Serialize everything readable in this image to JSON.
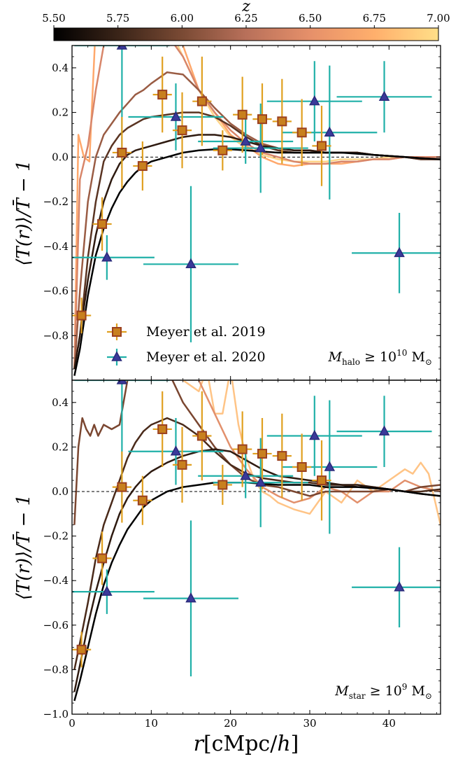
{
  "chart_data": {
    "colorbar": {
      "label": "z",
      "ticks": [
        "5.50",
        "5.75",
        "6.00",
        "6.25",
        "6.50",
        "6.75",
        "7.00"
      ],
      "range": [
        5.5,
        7.0
      ],
      "colors": [
        "#000000",
        "#3a2418",
        "#7a4a34",
        "#b8705a",
        "#e6906a",
        "#ffaf6c",
        "#ffdf88"
      ]
    },
    "xlabel": "r[cMpc/h]",
    "xlim": [
      0,
      46.5
    ],
    "xticks": [
      "0",
      "10",
      "20",
      "30",
      "40"
    ],
    "panels": [
      {
        "ylabel": "⟨T(r)⟩/T̄ − 1",
        "ylim": [
          -1.0,
          0.5
        ],
        "yticks": [
          "−1.0",
          "−0.8",
          "−0.6",
          "−0.4",
          "−0.2",
          "0.0",
          "0.2",
          "0.4"
        ],
        "annotation": {
          "var": "M",
          "sub": "halo",
          "rel": "≥ 10",
          "exp": "10",
          "unit": "M",
          "unit_sub": "⊙"
        },
        "show_legend": true,
        "series": [
          {
            "z": 5.55,
            "color": "#000000",
            "x": [
              0.3,
              1,
              2,
              3,
              4,
              5,
              6,
              7,
              8,
              9,
              10,
              12,
              14,
              16,
              18,
              20,
              22,
              24,
              26,
              28,
              30,
              32,
              34,
              36,
              38,
              40,
              42,
              44,
              46.5
            ],
            "y": [
              -0.98,
              -0.86,
              -0.62,
              -0.44,
              -0.32,
              -0.23,
              -0.16,
              -0.11,
              -0.07,
              -0.04,
              -0.02,
              0.0,
              0.02,
              0.03,
              0.035,
              0.035,
              0.03,
              0.025,
              0.02,
              0.02,
              0.02,
              0.02,
              0.02,
              0.015,
              0.01,
              0.005,
              0.0,
              -0.005,
              -0.01
            ]
          },
          {
            "z": 5.9,
            "color": "#2e1a10",
            "x": [
              0.3,
              1,
              2,
              3,
              4,
              5,
              6,
              7,
              8,
              9,
              10,
              12,
              14,
              16,
              18,
              20,
              22,
              24,
              26,
              28,
              30,
              32,
              34,
              36,
              38,
              40,
              42,
              44,
              46.5
            ],
            "y": [
              -0.95,
              -0.8,
              -0.55,
              -0.35,
              -0.2,
              -0.1,
              -0.03,
              0.01,
              0.03,
              0.04,
              0.05,
              0.07,
              0.09,
              0.1,
              0.1,
              0.09,
              0.07,
              0.05,
              0.04,
              0.03,
              0.03,
              0.02,
              0.02,
              0.02,
              0.01,
              0.005,
              0.0,
              -0.005,
              -0.01
            ]
          },
          {
            "z": 6.1,
            "color": "#5a3422",
            "x": [
              0.3,
              1,
              2,
              3,
              4,
              5,
              6,
              7,
              8,
              9,
              10,
              12,
              14,
              16,
              18,
              20,
              22,
              24,
              26,
              28,
              30,
              32,
              34,
              36,
              38,
              40,
              42,
              44,
              46.5
            ],
            "y": [
              -0.95,
              -0.8,
              -0.45,
              -0.2,
              -0.02,
              0.05,
              0.1,
              0.13,
              0.15,
              0.17,
              0.18,
              0.19,
              0.2,
              0.2,
              0.18,
              0.14,
              0.09,
              0.05,
              0.03,
              0.02,
              0.02,
              0.02,
              0.02,
              0.02,
              0.01,
              0.005,
              0.0,
              -0.01,
              -0.01
            ]
          },
          {
            "z": 6.35,
            "color": "#9a5c44",
            "x": [
              0.3,
              1,
              2,
              3,
              4,
              5,
              6,
              7,
              8,
              9,
              10,
              12,
              14,
              16,
              18,
              20,
              22,
              24,
              26,
              28,
              30,
              32,
              34,
              36,
              38,
              40,
              42,
              44,
              46.5
            ],
            "y": [
              -0.95,
              -0.6,
              -0.2,
              0.0,
              0.1,
              0.15,
              0.2,
              0.24,
              0.28,
              0.3,
              0.33,
              0.38,
              0.37,
              0.3,
              0.22,
              0.15,
              0.1,
              0.06,
              0.04,
              0.03,
              0.03,
              0.02,
              0.02,
              0.02,
              0.01,
              0.005,
              0.0,
              -0.01,
              -0.01
            ]
          },
          {
            "z": 6.6,
            "color": "#d8866a",
            "x": [
              0.3,
              1,
              2,
              3,
              4,
              5,
              6,
              7,
              8,
              9,
              10,
              12,
              14,
              16,
              18,
              20,
              22,
              24,
              26,
              28,
              30,
              32,
              34,
              36,
              38,
              40,
              42,
              44,
              46.5
            ],
            "y": [
              -0.95,
              -0.1,
              0.05,
              0.3,
              0.5,
              0.6,
              0.6,
              0.6,
              0.6,
              0.55,
              0.52,
              0.55,
              0.45,
              0.3,
              0.2,
              0.12,
              0.06,
              0.02,
              0.0,
              -0.02,
              -0.03,
              -0.03,
              -0.02,
              -0.02,
              -0.01,
              -0.01,
              0.0,
              0.0,
              0.0
            ]
          },
          {
            "z": 6.85,
            "color": "#ffa86c",
            "x": [
              0.3,
              0.8,
              1.5,
              2.2,
              3,
              4,
              5,
              6,
              7,
              8,
              9,
              10,
              12,
              14,
              16,
              18,
              20,
              22,
              24,
              26,
              28,
              30,
              32,
              34,
              36,
              38,
              40,
              42,
              44,
              46.5
            ],
            "y": [
              -0.95,
              0.1,
              0.0,
              -0.02,
              0.6,
              0.6,
              0.6,
              0.6,
              0.6,
              0.6,
              0.6,
              0.6,
              0.6,
              0.5,
              0.3,
              0.2,
              0.1,
              0.05,
              0.0,
              -0.03,
              -0.04,
              -0.03,
              -0.03,
              -0.03,
              -0.02,
              -0.01,
              -0.01,
              0.0,
              0.0,
              0.0
            ]
          },
          {
            "z": 6.95,
            "color": "#ffd58a",
            "x": [
              0.3,
              0.8,
              1.2,
              1.8,
              2.5,
              3,
              4,
              5,
              6,
              7,
              8,
              10,
              12,
              14,
              16,
              18,
              20,
              22,
              24,
              26,
              28,
              30,
              32,
              34,
              36,
              38,
              40,
              42,
              44,
              46.5
            ],
            "y": [
              0.6,
              0.6,
              0.6,
              0.6,
              0.6,
              0.6,
              0.6,
              0.6,
              0.6,
              0.6,
              0.6,
              0.6,
              0.6,
              0.45,
              0.3,
              0.18,
              0.09,
              0.04,
              0.01,
              -0.01,
              -0.02,
              -0.02,
              -0.02,
              -0.01,
              -0.01,
              -0.01,
              0.0,
              0.0,
              0.0,
              0.0
            ]
          }
        ]
      },
      {
        "ylabel": "⟨T(r)⟩/T̄ − 1",
        "ylim": [
          -1.0,
          0.5
        ],
        "yticks": [
          "−1.0",
          "−0.8",
          "−0.6",
          "−0.4",
          "−0.2",
          "0.0",
          "0.2",
          "0.4"
        ],
        "annotation": {
          "var": "M",
          "sub": "star",
          "rel": "≥ 10",
          "exp": "9",
          "unit": "M",
          "unit_sub": "⊙"
        },
        "show_legend": false,
        "series": [
          {
            "z": 5.55,
            "color": "#000000",
            "x": [
              0.3,
              1,
              2,
              3,
              4,
              5,
              6,
              7,
              8,
              9,
              10,
              12,
              14,
              16,
              18,
              20,
              22,
              24,
              26,
              28,
              30,
              32,
              34,
              36,
              38,
              40,
              42,
              44,
              46.5
            ],
            "y": [
              -0.94,
              -0.85,
              -0.7,
              -0.55,
              -0.42,
              -0.32,
              -0.24,
              -0.17,
              -0.12,
              -0.07,
              -0.04,
              0.0,
              0.02,
              0.03,
              0.04,
              0.04,
              0.04,
              0.035,
              0.03,
              0.03,
              0.03,
              0.02,
              0.02,
              0.02,
              0.015,
              0.01,
              0.0,
              -0.01,
              -0.02
            ]
          },
          {
            "z": 5.9,
            "color": "#2e1a10",
            "x": [
              0.3,
              1,
              2,
              3,
              4,
              5,
              6,
              7,
              8,
              9,
              10,
              12,
              14,
              16,
              18,
              20,
              22,
              24,
              26,
              28,
              30,
              32,
              34,
              36,
              38,
              40,
              42,
              44,
              46.5
            ],
            "y": [
              -0.9,
              -0.78,
              -0.6,
              -0.45,
              -0.32,
              -0.2,
              -0.1,
              -0.03,
              0.02,
              0.06,
              0.09,
              0.13,
              0.16,
              0.18,
              0.19,
              0.18,
              0.14,
              0.1,
              0.07,
              0.06,
              0.05,
              0.04,
              0.03,
              0.03,
              0.02,
              0.01,
              0.0,
              -0.01,
              -0.02
            ]
          },
          {
            "z": 6.05,
            "color": "#4a2a1a",
            "x": [
              0.3,
              1,
              2,
              3,
              4,
              5,
              6,
              7,
              8,
              9,
              10,
              12,
              14,
              16,
              18,
              20,
              22,
              24,
              26,
              28,
              30,
              32,
              34,
              36,
              38,
              40,
              42,
              44,
              46.5
            ],
            "y": [
              -0.8,
              -0.68,
              -0.5,
              -0.3,
              -0.15,
              -0.05,
              0.05,
              0.15,
              0.22,
              0.27,
              0.3,
              0.33,
              0.3,
              0.25,
              0.18,
              0.12,
              0.08,
              0.06,
              0.05,
              0.04,
              0.04,
              0.03,
              0.03,
              0.02,
              0.02,
              0.01,
              0.0,
              0.0,
              0.01
            ]
          },
          {
            "z": 6.25,
            "color": "#7a4630",
            "x": [
              0.3,
              0.8,
              1.3,
              1.8,
              2.3,
              2.8,
              3.3,
              4,
              5,
              6,
              7,
              8,
              10,
              12,
              14,
              16,
              18,
              20,
              22,
              24,
              26,
              28,
              30,
              32,
              34,
              36,
              38,
              40,
              42,
              44,
              46.5
            ],
            "y": [
              -0.15,
              0.2,
              0.33,
              0.28,
              0.25,
              0.3,
              0.25,
              0.3,
              0.28,
              0.3,
              0.5,
              0.6,
              0.6,
              0.55,
              0.4,
              0.3,
              0.2,
              0.12,
              0.06,
              0.03,
              0.02,
              0.0,
              -0.02,
              0.0,
              0.0,
              0.0,
              0.0,
              0.01,
              0.0,
              0.02,
              0.03
            ]
          },
          {
            "z": 6.6,
            "color": "#e2906c",
            "x": [
              8,
              10,
              12,
              14,
              16,
              18,
              20,
              22,
              24,
              26,
              28,
              30,
              32,
              34,
              36,
              38,
              40,
              42,
              44,
              46.5
            ],
            "y": [
              0.6,
              0.6,
              0.6,
              0.6,
              0.5,
              0.35,
              0.2,
              0.1,
              0.02,
              -0.02,
              -0.05,
              -0.03,
              0.02,
              0.0,
              -0.05,
              0.0,
              0.0,
              0.05,
              0.02,
              0.0
            ]
          },
          {
            "z": 6.95,
            "color": "#ffc486",
            "x": [
              14,
              16,
              17,
              18,
              19,
              20,
              21,
              22,
              23,
              24,
              25,
              26,
              28,
              30,
              32,
              34,
              36,
              38,
              40,
              42,
              43,
              44,
              45,
              46.5
            ],
            "y": [
              0.5,
              0.45,
              0.55,
              0.35,
              0.35,
              0.55,
              0.3,
              0.15,
              0.05,
              0.0,
              -0.02,
              -0.05,
              -0.08,
              -0.1,
              0.0,
              -0.05,
              0.05,
              0.0,
              0.05,
              0.1,
              0.08,
              0.13,
              0.08,
              -0.15
            ]
          }
        ]
      }
    ],
    "points": {
      "meyer2019": {
        "label": "Meyer et al. 2019",
        "color_face": "#c8801e",
        "color_edge": "#9a4020",
        "color_err": "#e0a020",
        "x": [
          1.2,
          3.8,
          6.3,
          8.9,
          11.4,
          13.9,
          16.4,
          19.0,
          21.5,
          24.0,
          26.5,
          29.0,
          31.5
        ],
        "y": [
          -0.71,
          -0.3,
          0.02,
          -0.04,
          0.28,
          0.12,
          0.25,
          0.03,
          0.19,
          0.17,
          0.16,
          0.11,
          0.05
        ],
        "xerr": [
          1.2,
          1.2,
          1.2,
          1.2,
          1.2,
          1.2,
          1.2,
          1.2,
          1.2,
          1.2,
          1.2,
          1.2,
          1.2
        ],
        "yerr": [
          0.08,
          0.12,
          0.16,
          0.11,
          0.17,
          0.17,
          0.2,
          0.09,
          0.17,
          0.16,
          0.19,
          0.15,
          0.18
        ]
      },
      "meyer2020": {
        "label": "Meyer et al. 2020",
        "color_face": "#3a3a9a",
        "color_edge": "#2a2a7a",
        "color_err": "#20b0a8",
        "x": [
          4.4,
          6.3,
          13.1,
          15.0,
          21.9,
          23.8,
          30.6,
          32.5,
          39.4,
          41.3
        ],
        "y": [
          -0.45,
          0.5,
          0.18,
          -0.48,
          0.07,
          0.04,
          0.25,
          0.11,
          0.27,
          -0.43
        ],
        "xerr": [
          6.0,
          6.0,
          6.0,
          6.0,
          6.0,
          6.0,
          6.0,
          6.0,
          6.0,
          6.0
        ],
        "yerr": [
          0.1,
          0.55,
          0.15,
          0.35,
          0.1,
          0.2,
          0.18,
          0.3,
          0.16,
          0.18
        ]
      }
    }
  }
}
